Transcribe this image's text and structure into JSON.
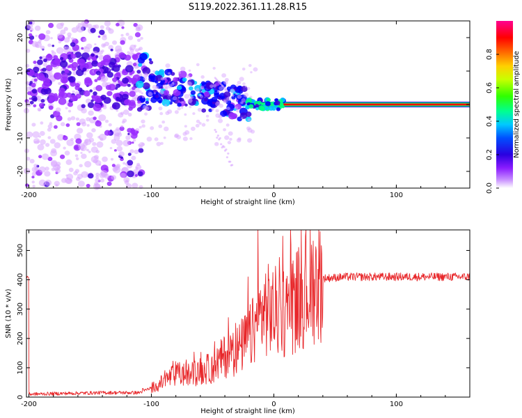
{
  "title": "S119.2022.361.11.28.R15",
  "chart_data": [
    {
      "type": "heatmap",
      "xlabel": "Height of straight line (km)",
      "ylabel": "Frequency (Hz)",
      "xlim": [
        -202,
        160
      ],
      "ylim": [
        -25,
        25
      ],
      "x_ticks": [
        "-200",
        "-100",
        "0",
        "100"
      ],
      "y_ticks": [
        "20",
        "10",
        "0",
        "-10",
        "-20"
      ],
      "colorbar": {
        "label": "Normalized spectral amplitude",
        "range": [
          0,
          1
        ],
        "ticks": [
          "0.0",
          "0.2",
          "0.4",
          "0.6",
          "0.8"
        ]
      },
      "colormap": [
        "#ffffff",
        "#d9a8ff",
        "#9a2cff",
        "#3c00d8",
        "#0000ff",
        "#00c8ff",
        "#00ff7f",
        "#7fff00",
        "#ffff00",
        "#ff8000",
        "#ff0000",
        "#ff007f"
      ],
      "grid": false
    },
    {
      "type": "line",
      "xlabel": "Height of straight line (km)",
      "ylabel": "SNR (10 * v/v)",
      "xlim": [
        -202,
        160
      ],
      "ylim": [
        0,
        570
      ],
      "x_ticks": [
        "-200",
        "-100",
        "0",
        "100"
      ],
      "y_ticks": [
        "0",
        "100",
        "200",
        "300",
        "400",
        "500"
      ],
      "series_color": "#e8282b",
      "key_points": [
        {
          "x": -200,
          "y": 10
        },
        {
          "x": -140,
          "y": 15
        },
        {
          "x": -110,
          "y": 15
        },
        {
          "x": -95,
          "y": 40
        },
        {
          "x": -80,
          "y": 80
        },
        {
          "x": -70,
          "y": 75
        },
        {
          "x": -50,
          "y": 100
        },
        {
          "x": -40,
          "y": 140
        },
        {
          "x": -30,
          "y": 160
        },
        {
          "x": -20,
          "y": 200
        },
        {
          "x": -15,
          "y": 240
        },
        {
          "x": -8,
          "y": 300
        },
        {
          "x": 0,
          "y": 290
        },
        {
          "x": 10,
          "y": 290
        },
        {
          "x": 20,
          "y": 340
        },
        {
          "x": 30,
          "y": 385
        },
        {
          "x": 40,
          "y": 405
        },
        {
          "x": 60,
          "y": 410
        },
        {
          "x": 160,
          "y": 410
        }
      ],
      "spikes": [
        {
          "x": -21,
          "y": 410
        },
        {
          "x": -13,
          "y": 570
        },
        {
          "x": 14,
          "y": 520
        },
        {
          "x": -107,
          "y": 30
        }
      ],
      "grid": false
    }
  ]
}
